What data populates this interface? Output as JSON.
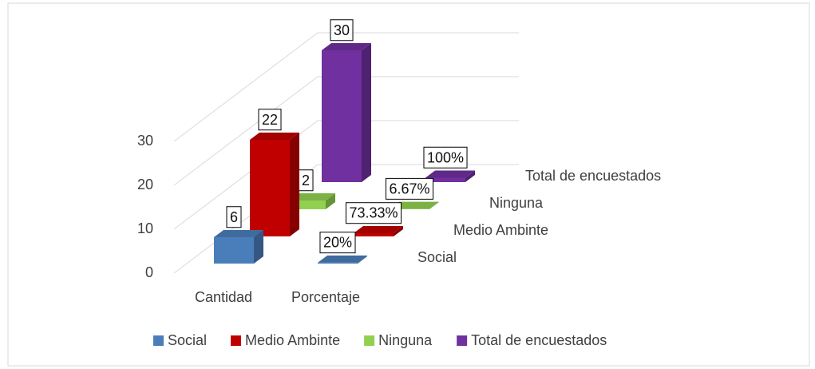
{
  "chart_data": {
    "type": "bar3d",
    "categories": [
      "Cantidad",
      "Porcentaje"
    ],
    "series": [
      {
        "name": "Social",
        "color": "#4a7ebb",
        "values": [
          6,
          0.2
        ],
        "value_labels": [
          "6",
          "20%"
        ]
      },
      {
        "name": "Medio Ambinte",
        "color": "#c00000",
        "values": [
          22,
          0.7333
        ],
        "value_labels": [
          "22",
          "73.33%"
        ]
      },
      {
        "name": "Ninguna",
        "color": "#92d050",
        "values": [
          2,
          0.0667
        ],
        "value_labels": [
          "2",
          "6.67%"
        ]
      },
      {
        "name": "Total de encuestados",
        "color": "#7030a0",
        "values": [
          30,
          1
        ],
        "value_labels": [
          "30",
          "100%"
        ]
      }
    ],
    "ylim": [
      0,
      30
    ],
    "yticks": [
      0,
      10,
      20,
      30
    ],
    "grid": true,
    "legend": "bottom"
  }
}
